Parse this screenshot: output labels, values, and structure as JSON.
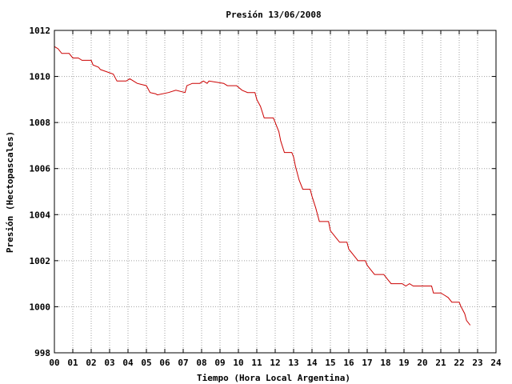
{
  "chart_data": {
    "type": "line",
    "title": "Presión 13/06/2008",
    "xlabel": "Tiempo (Hora Local Argentina)",
    "ylabel": "Presión (Hectopascales)",
    "xlim": [
      0,
      24
    ],
    "ylim": [
      998,
      1012
    ],
    "grid": true,
    "x_tick_labels": [
      "00",
      "01",
      "02",
      "03",
      "04",
      "05",
      "06",
      "07",
      "08",
      "09",
      "10",
      "11",
      "12",
      "13",
      "14",
      "15",
      "16",
      "17",
      "18",
      "19",
      "20",
      "21",
      "22",
      "23",
      "24"
    ],
    "y_tick_labels": [
      "998",
      "1000",
      "1002",
      "1004",
      "1006",
      "1008",
      "1010",
      "1012"
    ],
    "y_tick_values": [
      998,
      1000,
      1002,
      1004,
      1006,
      1008,
      1010,
      1012
    ],
    "series": [
      {
        "color": "#cc0000",
        "points": [
          [
            0.0,
            1011.3
          ],
          [
            0.2,
            1011.2
          ],
          [
            0.4,
            1011.0
          ],
          [
            0.8,
            1011.0
          ],
          [
            1.0,
            1010.8
          ],
          [
            1.3,
            1010.8
          ],
          [
            1.5,
            1010.7
          ],
          [
            2.0,
            1010.7
          ],
          [
            2.1,
            1010.5
          ],
          [
            2.4,
            1010.4
          ],
          [
            2.5,
            1010.3
          ],
          [
            3.2,
            1010.1
          ],
          [
            3.4,
            1009.8
          ],
          [
            3.9,
            1009.8
          ],
          [
            4.1,
            1009.9
          ],
          [
            4.3,
            1009.8
          ],
          [
            4.5,
            1009.7
          ],
          [
            5.0,
            1009.6
          ],
          [
            5.2,
            1009.3
          ],
          [
            5.5,
            1009.25
          ],
          [
            5.6,
            1009.2
          ],
          [
            6.2,
            1009.3
          ],
          [
            6.6,
            1009.4
          ],
          [
            7.1,
            1009.3
          ],
          [
            7.2,
            1009.6
          ],
          [
            7.5,
            1009.7
          ],
          [
            7.9,
            1009.7
          ],
          [
            8.1,
            1009.8
          ],
          [
            8.3,
            1009.7
          ],
          [
            8.4,
            1009.8
          ],
          [
            9.2,
            1009.7
          ],
          [
            9.4,
            1009.6
          ],
          [
            9.9,
            1009.6
          ],
          [
            10.2,
            1009.4
          ],
          [
            10.5,
            1009.3
          ],
          [
            10.9,
            1009.3
          ],
          [
            11.0,
            1009.0
          ],
          [
            11.2,
            1008.7
          ],
          [
            11.4,
            1008.2
          ],
          [
            11.9,
            1008.2
          ],
          [
            12.0,
            1008.0
          ],
          [
            12.2,
            1007.6
          ],
          [
            12.3,
            1007.2
          ],
          [
            12.5,
            1006.7
          ],
          [
            12.9,
            1006.7
          ],
          [
            13.0,
            1006.5
          ],
          [
            13.1,
            1006.1
          ],
          [
            13.3,
            1005.5
          ],
          [
            13.5,
            1005.1
          ],
          [
            13.9,
            1005.1
          ],
          [
            14.0,
            1004.8
          ],
          [
            14.2,
            1004.3
          ],
          [
            14.4,
            1003.7
          ],
          [
            14.9,
            1003.7
          ],
          [
            15.0,
            1003.3
          ],
          [
            15.3,
            1003.0
          ],
          [
            15.5,
            1002.8
          ],
          [
            15.9,
            1002.8
          ],
          [
            16.0,
            1002.5
          ],
          [
            16.3,
            1002.2
          ],
          [
            16.5,
            1002.0
          ],
          [
            16.9,
            1002.0
          ],
          [
            17.0,
            1001.8
          ],
          [
            17.2,
            1001.6
          ],
          [
            17.4,
            1001.4
          ],
          [
            17.9,
            1001.4
          ],
          [
            18.1,
            1001.2
          ],
          [
            18.3,
            1001.0
          ],
          [
            18.9,
            1001.0
          ],
          [
            19.1,
            1000.9
          ],
          [
            19.3,
            1001.0
          ],
          [
            19.5,
            1000.9
          ],
          [
            20.5,
            1000.9
          ],
          [
            20.6,
            1000.6
          ],
          [
            21.0,
            1000.6
          ],
          [
            21.2,
            1000.5
          ],
          [
            21.4,
            1000.4
          ],
          [
            21.6,
            1000.2
          ],
          [
            22.0,
            1000.2
          ],
          [
            22.1,
            1000.0
          ],
          [
            22.3,
            999.7
          ],
          [
            22.4,
            999.4
          ],
          [
            22.6,
            999.2
          ]
        ]
      }
    ]
  }
}
